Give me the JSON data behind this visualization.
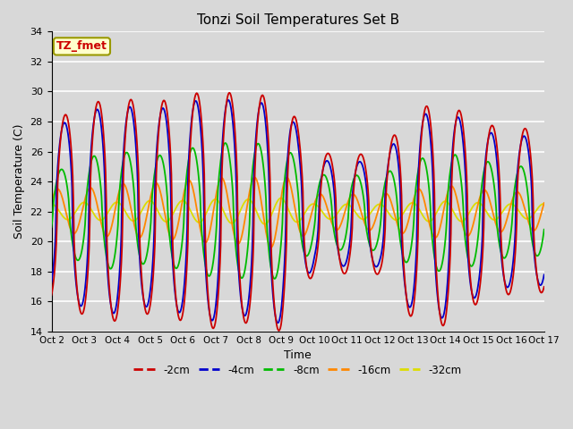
{
  "title": "Tonzi Soil Temperatures Set B",
  "xlabel": "Time",
  "ylabel": "Soil Temperature (C)",
  "ylim": [
    14,
    34
  ],
  "yticks": [
    14,
    16,
    18,
    20,
    22,
    24,
    26,
    28,
    30,
    32,
    34
  ],
  "bg_color": "#d8d8d8",
  "plot_bg_color": "#d8d8d8",
  "grid_color": "#ffffff",
  "series_colors": {
    "-2cm": "#cc0000",
    "-4cm": "#0000cc",
    "-8cm": "#00bb00",
    "-16cm": "#ff8800",
    "-32cm": "#dddd00"
  },
  "xtick_labels": [
    "Oct 2",
    "Oct 3",
    "Oct 4",
    "Oct 5",
    "Oct 6",
    "Oct 7",
    "Oct 8",
    "Oct 9",
    "Oct 10",
    "Oct 11",
    "Oct 12",
    "Oct 13",
    "Oct 14",
    "Oct 15",
    "Oct 16",
    "Oct 17"
  ],
  "annotation_text": "TZ_fmet",
  "annotation_bg": "#ffffcc",
  "annotation_border": "#999900",
  "annotation_text_color": "#cc0000",
  "n_days": 15,
  "points_per_day": 48
}
